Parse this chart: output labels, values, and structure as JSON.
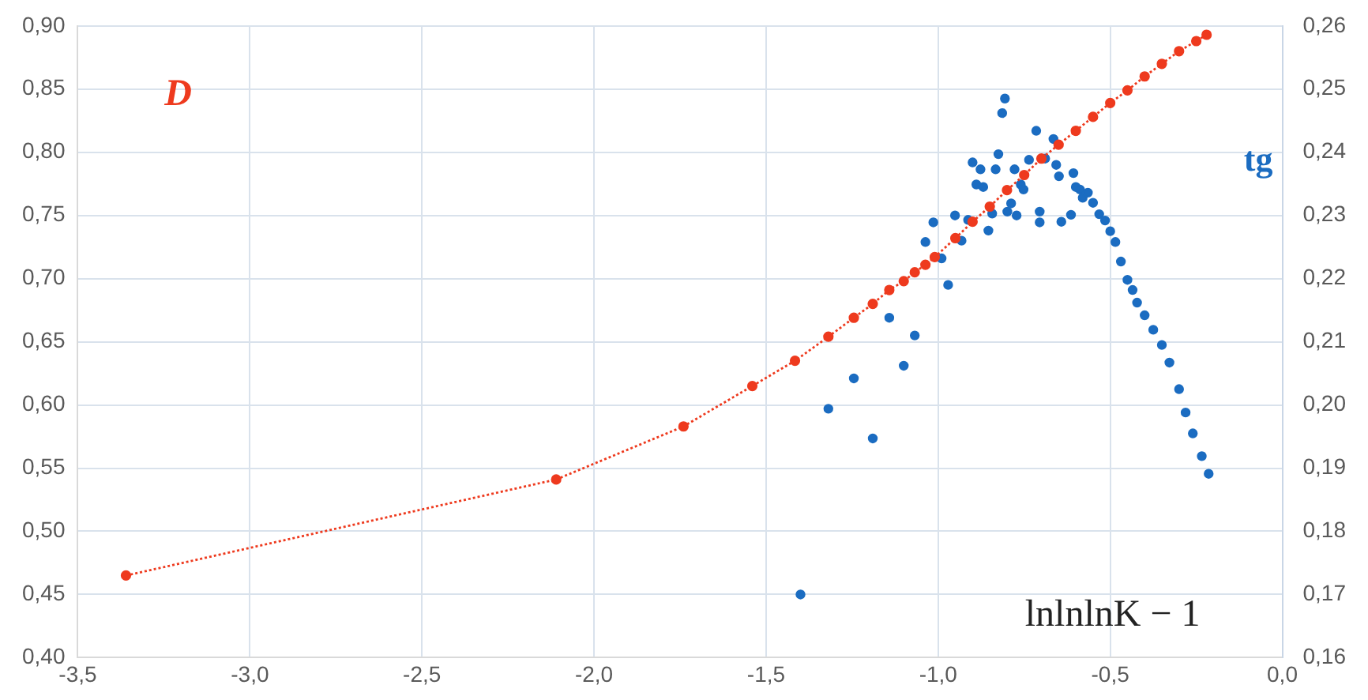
{
  "chart_data": {
    "type": "scatter",
    "xlabel": "lnlnlnK − 1",
    "xlim": [
      -3.5,
      0
    ],
    "xticks": [
      {
        "value": -3.5,
        "label": "-3,5"
      },
      {
        "value": -3,
        "label": "-3,0"
      },
      {
        "value": -2.5,
        "label": "-2,5"
      },
      {
        "value": -2,
        "label": "-2,0"
      },
      {
        "value": -1.5,
        "label": "-1,5"
      },
      {
        "value": -1,
        "label": "-1,0"
      },
      {
        "value": -0.5,
        "label": "-0,5"
      },
      {
        "value": 0,
        "label": "0,0"
      }
    ],
    "ylim": [
      0.4,
      0.9
    ],
    "yticks": [
      {
        "value": 0.4,
        "label": "0,40"
      },
      {
        "value": 0.45,
        "label": "0,45"
      },
      {
        "value": 0.5,
        "label": "0,50"
      },
      {
        "value": 0.55,
        "label": "0,55"
      },
      {
        "value": 0.6,
        "label": "0,60"
      },
      {
        "value": 0.65,
        "label": "0,65"
      },
      {
        "value": 0.7,
        "label": "0,70"
      },
      {
        "value": 0.75,
        "label": "0,75"
      },
      {
        "value": 0.8,
        "label": "0,80"
      },
      {
        "value": 0.85,
        "label": "0,85"
      },
      {
        "value": 0.9,
        "label": "0,90"
      }
    ],
    "y2lim": [
      0.16,
      0.26
    ],
    "y2ticks": [
      {
        "value": 0.16,
        "label": "0,16"
      },
      {
        "value": 0.17,
        "label": "0,17"
      },
      {
        "value": 0.18,
        "label": "0,18"
      },
      {
        "value": 0.19,
        "label": "0,19"
      },
      {
        "value": 0.2,
        "label": "0,20"
      },
      {
        "value": 0.21,
        "label": "0,21"
      },
      {
        "value": 0.22,
        "label": "0,22"
      },
      {
        "value": 0.23,
        "label": "0,23"
      },
      {
        "value": 0.24,
        "label": "0,24"
      },
      {
        "value": 0.25,
        "label": "0,25"
      },
      {
        "value": 0.26,
        "label": "0,26"
      }
    ],
    "grid": true,
    "legend": false,
    "marker": "circle",
    "series": [
      {
        "name": "D",
        "type": "line",
        "line_style": "dotted",
        "color": "#ee3a1e",
        "x": [
          -3.36,
          -2.11,
          -1.74,
          -1.54,
          -1.416,
          -1.319,
          -1.245,
          -1.19,
          -1.142,
          -1.1,
          -1.068,
          -1.037,
          -1.01,
          -0.95,
          -0.9,
          -0.85,
          -0.8,
          -0.75,
          -0.7,
          -0.65,
          -0.6,
          -0.55,
          -0.5,
          -0.45,
          -0.4,
          -0.35,
          -0.3,
          -0.25,
          -0.22
        ],
        "values": [
          0.465,
          0.541,
          0.583,
          0.615,
          0.635,
          0.654,
          0.669,
          0.68,
          0.691,
          0.698,
          0.705,
          0.711,
          0.717,
          0.732,
          0.745,
          0.757,
          0.77,
          0.782,
          0.795,
          0.806,
          0.817,
          0.828,
          0.839,
          0.849,
          0.86,
          0.87,
          0.88,
          0.888,
          0.893
        ]
      },
      {
        "name": "tg",
        "axis": "y2",
        "color": "#1b6cc1",
        "x": [
          -1.4,
          -1.319,
          -1.245,
          -1.19,
          -1.142,
          -1.1,
          -1.068,
          -1.037,
          -1.014,
          -0.99,
          -0.971,
          -0.951,
          -0.932,
          -0.913,
          -0.9,
          -0.889,
          -0.877,
          -0.869,
          -0.854,
          -0.843,
          -0.833,
          -0.825,
          -0.814,
          -0.806,
          -0.799,
          -0.788,
          -0.778,
          -0.772,
          -0.76,
          -0.752,
          -0.736,
          -0.715,
          -0.705,
          -0.705,
          -0.689,
          -0.665,
          -0.657,
          -0.649,
          -0.642,
          -0.614,
          -0.607,
          -0.6,
          -0.588,
          -0.58,
          -0.565,
          -0.55,
          -0.532,
          -0.515,
          -0.5,
          -0.485,
          -0.469,
          -0.45,
          -0.435,
          -0.422,
          -0.4,
          -0.375,
          -0.35,
          -0.328,
          -0.3,
          -0.281,
          -0.26,
          -0.234,
          -0.214
        ],
        "values": [
          0.17,
          0.1994,
          0.2042,
          0.1947,
          0.2138,
          0.2062,
          0.211,
          0.2258,
          0.2289,
          0.2232,
          0.219,
          0.23,
          0.226,
          0.2293,
          0.2384,
          0.2349,
          0.2373,
          0.2345,
          0.2276,
          0.2303,
          0.2373,
          0.2397,
          0.2462,
          0.2485,
          0.2306,
          0.2319,
          0.2373,
          0.23,
          0.2349,
          0.2341,
          0.2388,
          0.2434,
          0.2306,
          0.2289,
          0.239,
          0.2421,
          0.238,
          0.2362,
          0.229,
          0.2301,
          0.2367,
          0.2345,
          0.2341,
          0.2328,
          0.2336,
          0.232,
          0.2302,
          0.2292,
          0.2275,
          0.2258,
          0.2227,
          0.2198,
          0.2182,
          0.2162,
          0.2142,
          0.2119,
          0.2095,
          0.2067,
          0.2025,
          0.1988,
          0.1955,
          0.1919,
          0.1891
        ]
      }
    ]
  }
}
